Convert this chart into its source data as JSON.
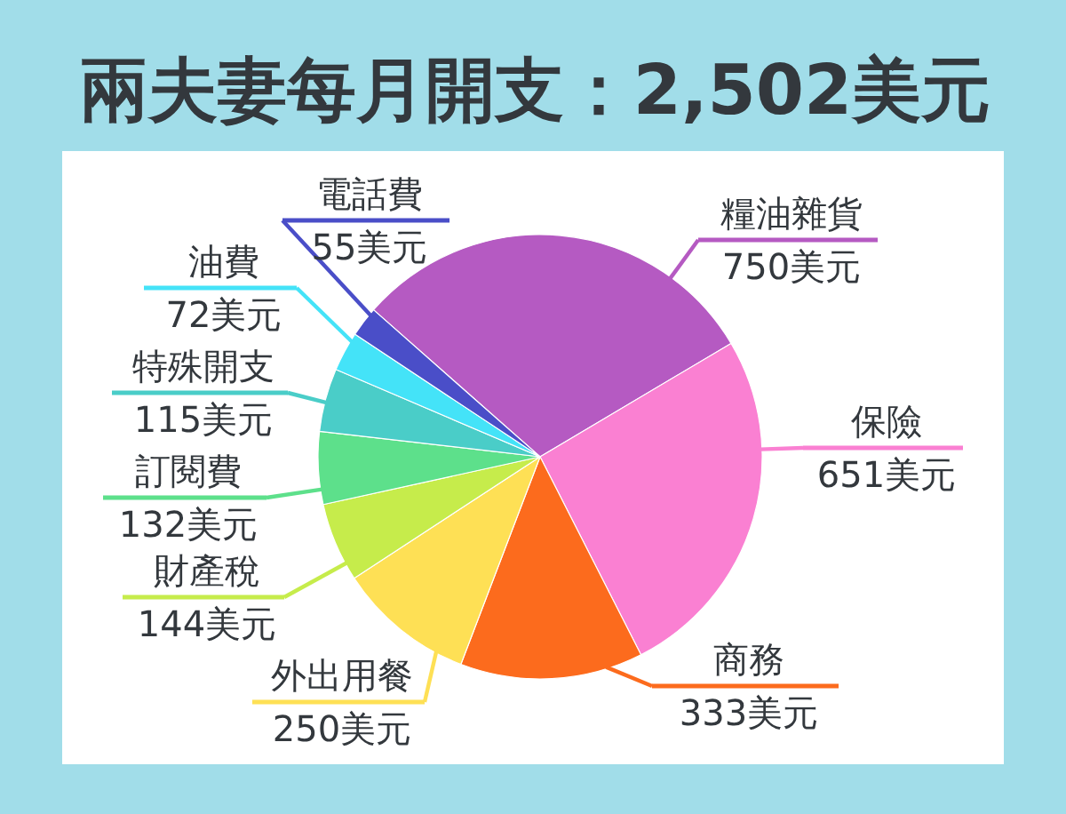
{
  "chart_data": {
    "type": "pie",
    "title": "兩夫妻每月開支：2,502美元",
    "categories": [
      "糧油雜貨",
      "保險",
      "商務",
      "外出用餐",
      "財產稅",
      "訂閱費",
      "特殊開支",
      "油費",
      "電話費"
    ],
    "values": [
      750,
      651,
      333,
      250,
      144,
      132,
      115,
      72,
      55
    ],
    "colors": [
      "#b55ac2",
      "#fa80d2",
      "#fc6b1d",
      "#fee055",
      "#c6ec4b",
      "#5de08b",
      "#4acdc8",
      "#44e3f8",
      "#4a4ec8"
    ],
    "value_labels": [
      "750美元",
      "651美元",
      "333美元",
      "250美元",
      "144美元",
      "132美元",
      "115美元",
      "72美元",
      "55美元"
    ]
  }
}
